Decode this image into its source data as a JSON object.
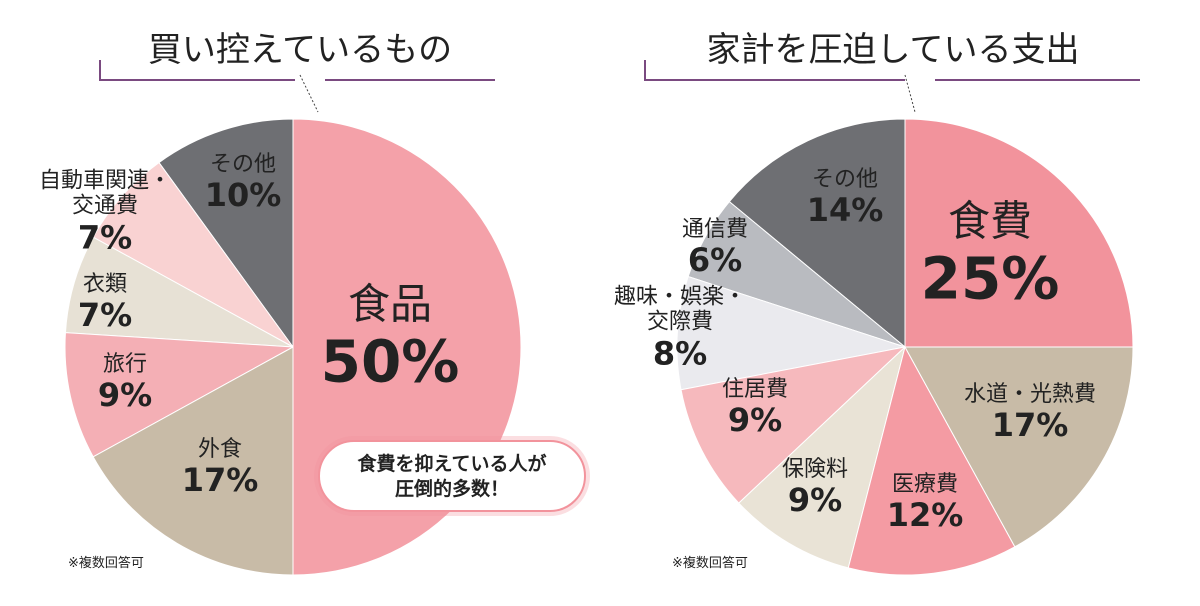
{
  "chart_data": [
    {
      "type": "pie",
      "title": "買い控えているもの",
      "note": "※複数回答可",
      "annotation": "食費を抑えている人が\n圧倒的多数！",
      "categories": [
        "食品",
        "外食",
        "旅行",
        "衣類",
        "自動車関連・\n交通費",
        "その他"
      ],
      "values": [
        50,
        17,
        9,
        7,
        7,
        10
      ],
      "value_labels": [
        "50%",
        "17%",
        "9%",
        "7%",
        "7%",
        "10%"
      ],
      "colors": [
        "#f4a1a9",
        "#c8bba7",
        "#f4afb5",
        "#e7e1d5",
        "#f9d2d2",
        "#6e6f73"
      ]
    },
    {
      "type": "pie",
      "title": "家計を圧迫している支出",
      "note": "※複数回答可",
      "categories": [
        "食費",
        "水道・光熱費",
        "医療費",
        "保険料",
        "住居費",
        "趣味・娯楽・\n交際費",
        "通信費",
        "その他"
      ],
      "values": [
        25,
        17,
        12,
        9,
        9,
        8,
        6,
        14
      ],
      "value_labels": [
        "25%",
        "17%",
        "12%",
        "9%",
        "9%",
        "8%",
        "6%",
        "14%"
      ],
      "colors": [
        "#f2939c",
        "#c8bba7",
        "#f49ba3",
        "#e9e3d6",
        "#f6b9bd",
        "#eaeaee",
        "#b9bbc0",
        "#6e6f73"
      ]
    }
  ]
}
